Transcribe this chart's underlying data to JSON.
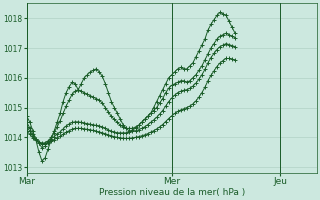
{
  "title": "Pression niveau de la mer( hPa )",
  "bg_color": "#cce8df",
  "grid_color": "#aaccbf",
  "line_color": "#1a5c28",
  "ylim": [
    1012.8,
    1018.5
  ],
  "yticks": [
    1013,
    1014,
    1015,
    1016,
    1017,
    1018
  ],
  "xlim": [
    0,
    96
  ],
  "day_ticks": [
    0,
    48,
    84
  ],
  "day_labels": [
    "Mar",
    "Mer",
    "Jeu"
  ],
  "vlines": [
    0,
    48,
    84
  ],
  "series": [
    [
      1014.7,
      1014.5,
      1014.2,
      1013.9,
      1013.5,
      1013.2,
      1013.3,
      1013.6,
      1013.9,
      1014.2,
      1014.5,
      1014.8,
      1015.2,
      1015.5,
      1015.7,
      1015.85,
      1015.8,
      1015.6,
      1015.8,
      1016.0,
      1016.1,
      1016.2,
      1016.25,
      1016.3,
      1016.2,
      1016.05,
      1015.8,
      1015.5,
      1015.2,
      1015.0,
      1014.8,
      1014.6,
      1014.4,
      1014.3,
      1014.2,
      1014.25,
      1014.3,
      1014.4,
      1014.5,
      1014.6,
      1014.7,
      1014.8,
      1015.0,
      1015.2,
      1015.4,
      1015.6,
      1015.8,
      1016.0,
      1016.1,
      1016.2,
      1016.3,
      1016.35,
      1016.3,
      1016.3,
      1016.4,
      1016.5,
      1016.7,
      1016.9,
      1017.1,
      1017.3,
      1017.6,
      1017.8,
      1017.95,
      1018.1,
      1018.2,
      1018.15,
      1018.1,
      1017.9,
      1017.7,
      1017.5
    ],
    [
      1014.5,
      1014.3,
      1014.1,
      1013.95,
      1013.8,
      1013.65,
      1013.7,
      1013.85,
      1014.0,
      1014.15,
      1014.35,
      1014.55,
      1014.8,
      1015.05,
      1015.25,
      1015.45,
      1015.55,
      1015.6,
      1015.55,
      1015.5,
      1015.45,
      1015.4,
      1015.35,
      1015.3,
      1015.25,
      1015.15,
      1015.0,
      1014.85,
      1014.7,
      1014.6,
      1014.5,
      1014.4,
      1014.35,
      1014.3,
      1014.3,
      1014.3,
      1014.35,
      1014.4,
      1014.5,
      1014.6,
      1014.7,
      1014.8,
      1014.9,
      1015.0,
      1015.15,
      1015.3,
      1015.5,
      1015.65,
      1015.75,
      1015.8,
      1015.85,
      1015.9,
      1015.9,
      1015.85,
      1015.9,
      1016.0,
      1016.1,
      1016.25,
      1016.4,
      1016.6,
      1016.8,
      1017.0,
      1017.15,
      1017.3,
      1017.4,
      1017.45,
      1017.5,
      1017.45,
      1017.4,
      1017.35
    ],
    [
      1014.35,
      1014.2,
      1014.05,
      1013.95,
      1013.85,
      1013.8,
      1013.82,
      1013.88,
      1013.95,
      1014.02,
      1014.1,
      1014.18,
      1014.28,
      1014.38,
      1014.45,
      1014.5,
      1014.52,
      1014.52,
      1014.5,
      1014.48,
      1014.46,
      1014.44,
      1014.42,
      1014.4,
      1014.38,
      1014.35,
      1014.3,
      1014.25,
      1014.2,
      1014.18,
      1014.15,
      1014.15,
      1014.15,
      1014.15,
      1014.18,
      1014.2,
      1014.22,
      1014.25,
      1014.3,
      1014.35,
      1014.42,
      1014.5,
      1014.58,
      1014.67,
      1014.78,
      1014.9,
      1015.05,
      1015.2,
      1015.32,
      1015.42,
      1015.5,
      1015.55,
      1015.58,
      1015.6,
      1015.65,
      1015.72,
      1015.82,
      1015.95,
      1016.1,
      1016.28,
      1016.5,
      1016.68,
      1016.82,
      1016.95,
      1017.05,
      1017.1,
      1017.15,
      1017.12,
      1017.08,
      1017.05
    ],
    [
      1014.2,
      1014.1,
      1013.98,
      1013.9,
      1013.82,
      1013.78,
      1013.78,
      1013.82,
      1013.87,
      1013.92,
      1013.98,
      1014.03,
      1014.1,
      1014.17,
      1014.22,
      1014.27,
      1014.3,
      1014.3,
      1014.3,
      1014.28,
      1014.27,
      1014.25,
      1014.23,
      1014.2,
      1014.18,
      1014.15,
      1014.12,
      1014.08,
      1014.05,
      1014.02,
      1014.0,
      1013.98,
      1013.97,
      1013.96,
      1013.97,
      1013.98,
      1014.0,
      1014.02,
      1014.05,
      1014.08,
      1014.12,
      1014.17,
      1014.22,
      1014.28,
      1014.35,
      1014.43,
      1014.53,
      1014.63,
      1014.72,
      1014.8,
      1014.87,
      1014.92,
      1014.96,
      1015.0,
      1015.05,
      1015.12,
      1015.22,
      1015.35,
      1015.5,
      1015.68,
      1015.9,
      1016.08,
      1016.23,
      1016.38,
      1016.5,
      1016.58,
      1016.65,
      1016.65,
      1016.63,
      1016.6
    ]
  ]
}
